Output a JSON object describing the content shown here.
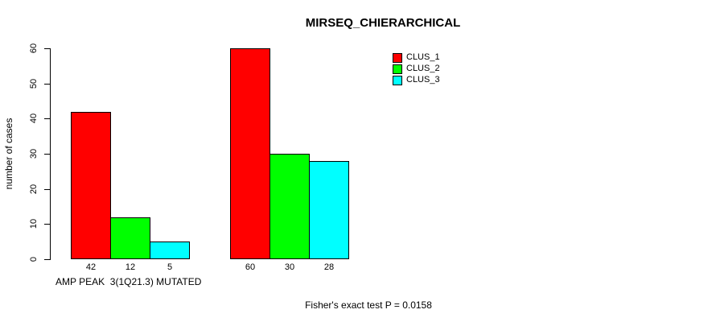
{
  "title": "MIRSEQ_CHIERARCHICAL",
  "y_axis": {
    "label": "number of cases"
  },
  "annotation": "Fisher's exact test P = 0.0158",
  "chart_data": {
    "type": "bar",
    "title": "MIRSEQ_CHIERARCHICAL",
    "xlabel": "",
    "ylabel": "number of cases",
    "ylim": [
      0,
      60
    ],
    "yticks": [
      0,
      10,
      20,
      30,
      40,
      50,
      60
    ],
    "grid": false,
    "legend_position": "top-right",
    "legend": [
      {
        "name": "CLUS_1",
        "color": "#ff0000"
      },
      {
        "name": "CLUS_2",
        "color": "#00ff00"
      },
      {
        "name": "CLUS_3",
        "color": "#00ffff"
      }
    ],
    "bar_colors": [
      "#ff0000",
      "#00ff00",
      "#00ffff"
    ],
    "series": [
      {
        "name": "CLUS_1",
        "values": [
          42,
          60
        ]
      },
      {
        "name": "CLUS_2",
        "values": [
          12,
          30
        ]
      },
      {
        "name": "CLUS_3",
        "values": [
          5,
          28
        ]
      }
    ],
    "groups": [
      {
        "label": "AMP PEAK  3(1Q21.3) MUTATED",
        "values": [
          42,
          12,
          5
        ],
        "bar_labels": [
          "42",
          "12",
          "5"
        ]
      },
      {
        "label": "",
        "values": [
          60,
          30,
          28
        ],
        "bar_labels": [
          "60",
          "30",
          "28"
        ]
      }
    ],
    "annotation": "Fisher's exact test P = 0.0158"
  }
}
